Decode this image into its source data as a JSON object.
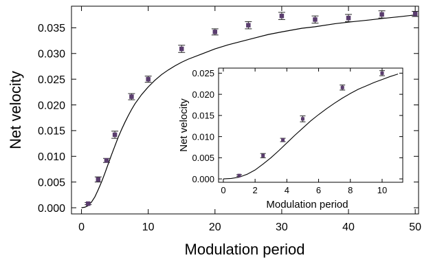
{
  "chart_data": [
    {
      "type": "scatter",
      "panel": "main",
      "xlabel": "Modulation period",
      "ylabel": "Net velocity",
      "xlim": [
        -1.5,
        50.5
      ],
      "ylim": [
        -0.0012,
        0.0392
      ],
      "x_ticks": [
        0,
        10,
        20,
        30,
        40,
        50
      ],
      "x_tick_labels": [
        "0",
        "10",
        "20",
        "30",
        "40",
        "50"
      ],
      "y_ticks": [
        0.0,
        0.005,
        0.01,
        0.015,
        0.02,
        0.025,
        0.03,
        0.035
      ],
      "y_tick_labels": [
        "0.000",
        "0.005",
        "0.010",
        "0.015",
        "0.020",
        "0.025",
        "0.030",
        "0.035"
      ],
      "marker_color": "#5a3d6e",
      "grid": false,
      "series": [
        {
          "x": [
            1,
            2.5,
            3.75,
            5,
            7.5,
            10,
            15,
            20,
            25,
            30,
            35,
            40,
            45,
            50
          ],
          "y": [
            0.0008,
            0.0055,
            0.0092,
            0.0142,
            0.0216,
            0.025,
            0.0309,
            0.0342,
            0.0355,
            0.0373,
            0.0366,
            0.0369,
            0.0376,
            0.0377
          ],
          "error": [
            0.0002,
            0.0005,
            0.0004,
            0.0007,
            0.0006,
            0.0006,
            0.0007,
            0.0006,
            0.0007,
            0.0007,
            0.0007,
            0.0007,
            0.0007,
            0.0005
          ]
        }
      ],
      "fit_curve": {
        "x": [
          0,
          0.5,
          1,
          1.5,
          2,
          2.5,
          3,
          3.5,
          4,
          4.5,
          5,
          5.5,
          6,
          6.5,
          7,
          7.5,
          8,
          9,
          10,
          11,
          12,
          13,
          14,
          15,
          16,
          18,
          20,
          22,
          25,
          28,
          30,
          33,
          35,
          38,
          40,
          43,
          45,
          48,
          50
        ],
        "y": [
          0.0,
          0.0001,
          0.0004,
          0.0011,
          0.0021,
          0.0035,
          0.005,
          0.0067,
          0.0085,
          0.0103,
          0.012,
          0.0137,
          0.0152,
          0.0166,
          0.0179,
          0.0191,
          0.0202,
          0.022,
          0.0235,
          0.0248,
          0.0259,
          0.0268,
          0.0276,
          0.0283,
          0.0289,
          0.0299,
          0.0309,
          0.0317,
          0.0327,
          0.0337,
          0.0342,
          0.0349,
          0.0352,
          0.0358,
          0.0361,
          0.0365,
          0.0368,
          0.0372,
          0.0375
        ]
      }
    },
    {
      "type": "scatter",
      "panel": "inset",
      "xlabel": "Modulation period",
      "ylabel": "Net velocity",
      "xlim": [
        -0.3,
        11.3
      ],
      "ylim": [
        -0.0008,
        0.0262
      ],
      "x_ticks": [
        0,
        2,
        4,
        6,
        8,
        10
      ],
      "x_tick_labels": [
        "0",
        "2",
        "4",
        "6",
        "8",
        "10"
      ],
      "y_ticks": [
        0.0,
        0.005,
        0.01,
        0.015,
        0.02,
        0.025
      ],
      "y_tick_labels": [
        "0.000",
        "0.005",
        "0.010",
        "0.015",
        "0.020",
        "0.025"
      ],
      "marker_color": "#5a3d6e",
      "grid": false,
      "series": [
        {
          "x": [
            1,
            2.5,
            3.75,
            5,
            7.5,
            10
          ],
          "y": [
            0.0008,
            0.0055,
            0.0092,
            0.0142,
            0.0216,
            0.025
          ],
          "error": [
            0.0002,
            0.0005,
            0.0004,
            0.0007,
            0.0006,
            0.0006
          ]
        }
      ],
      "fit_curve": {
        "x": [
          0,
          0.5,
          1,
          1.5,
          2,
          2.5,
          3,
          3.5,
          4,
          4.5,
          5,
          5.5,
          6,
          6.5,
          7,
          7.5,
          8,
          8.5,
          9,
          9.5,
          10,
          10.5,
          11
        ],
        "y": [
          0.0,
          0.0001,
          0.0004,
          0.0011,
          0.0021,
          0.0035,
          0.005,
          0.0067,
          0.0085,
          0.0103,
          0.012,
          0.0137,
          0.0152,
          0.0166,
          0.0179,
          0.0191,
          0.0202,
          0.0212,
          0.022,
          0.0228,
          0.0235,
          0.0242,
          0.0248
        ]
      }
    }
  ]
}
